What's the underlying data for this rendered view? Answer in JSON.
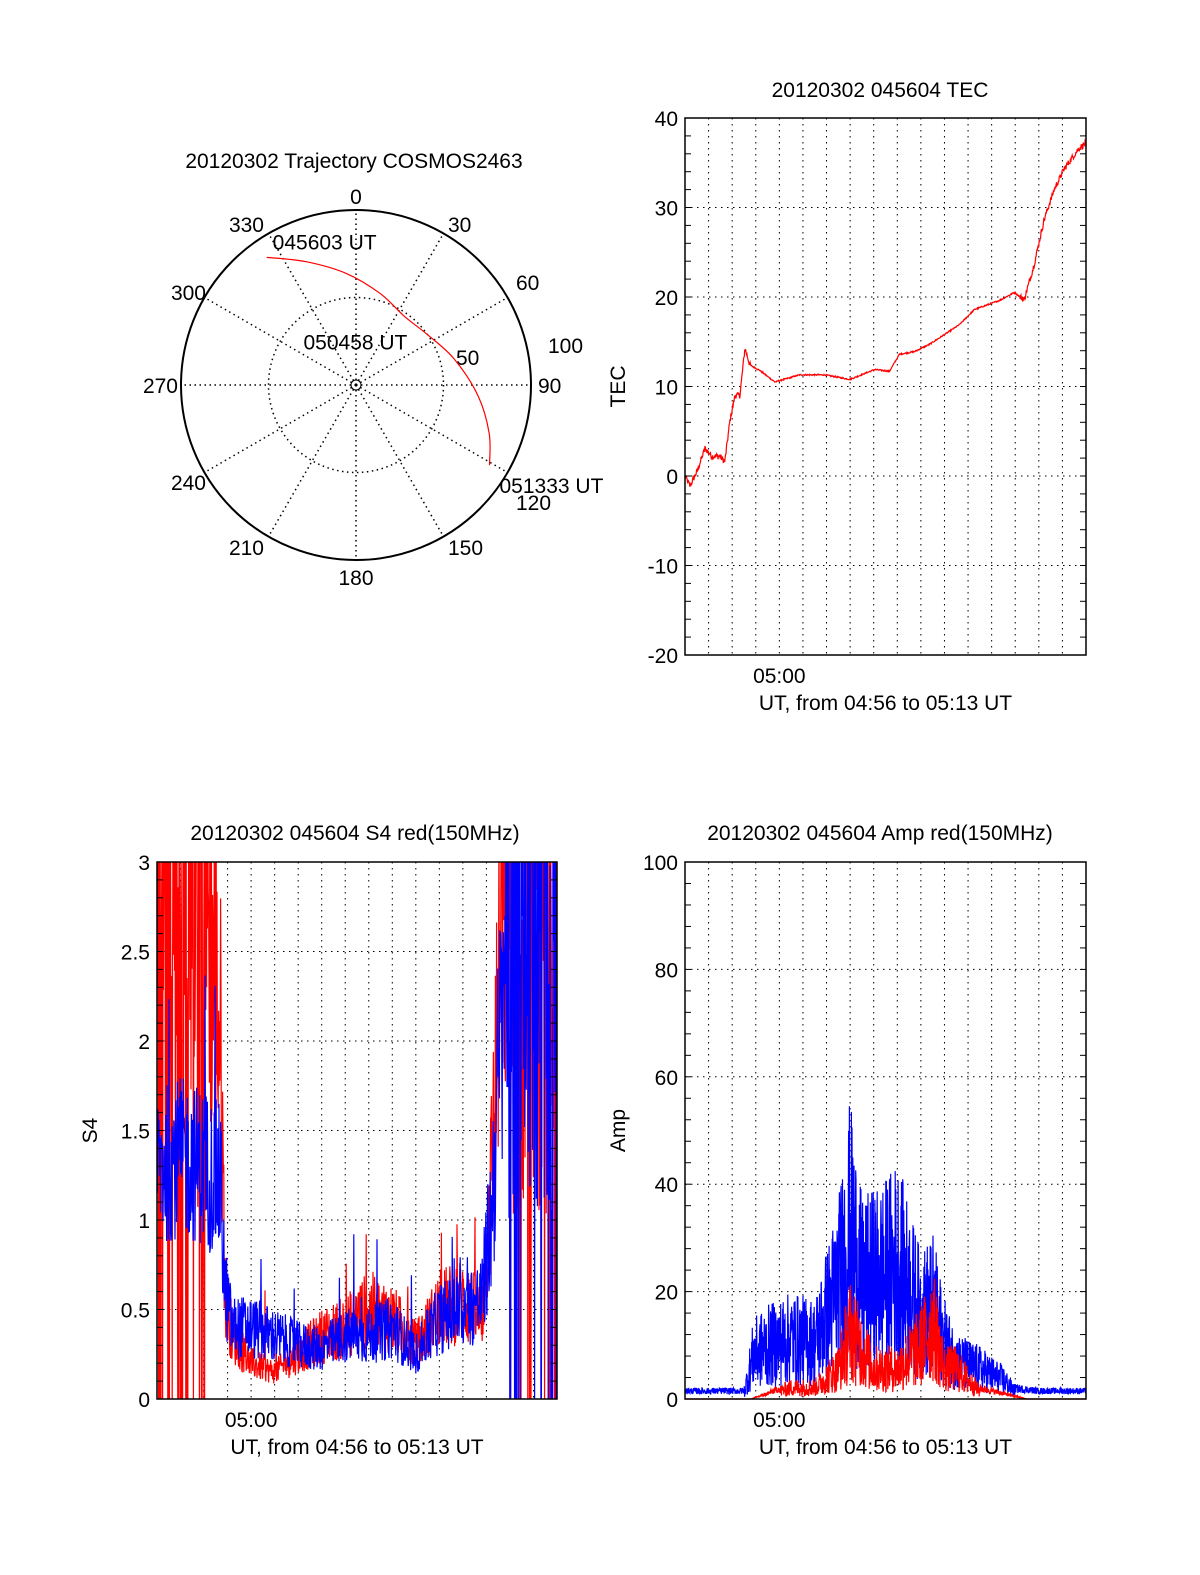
{
  "chart_data": [
    {
      "type": "polar",
      "title": "20120302 Trajectory COSMOS2463",
      "azimuth_labels": [
        "0",
        "30",
        "60",
        "90",
        "120",
        "150",
        "180",
        "210",
        "240",
        "270",
        "300",
        "330"
      ],
      "radial_labels": [
        "50",
        "100"
      ],
      "radial_range": [
        0,
        100
      ],
      "trajectory": {
        "color": "#ff0000",
        "points": [
          {
            "az": 325,
            "r": 89
          },
          {
            "az": 338,
            "r": 76
          },
          {
            "az": 355,
            "r": 64
          },
          {
            "az": 15,
            "r": 54
          },
          {
            "az": 35,
            "r": 48
          },
          {
            "az": 55,
            "r": 50
          },
          {
            "az": 75,
            "r": 58
          },
          {
            "az": 95,
            "r": 70
          },
          {
            "az": 110,
            "r": 81
          },
          {
            "az": 121,
            "r": 89
          }
        ]
      },
      "annotations": [
        {
          "text": "045603 UT",
          "az": 325,
          "r": 89
        },
        {
          "text": "050458 UT",
          "az": 45,
          "r": 48
        },
        {
          "text": "051333 UT",
          "az": 121,
          "r": 89
        }
      ]
    },
    {
      "type": "line",
      "title": "20120302 045604 TEC",
      "xlabel": "UT, from 04:56 to 05:13 UT",
      "ylabel": "TEC",
      "xlim": [
        0,
        17
      ],
      "ylim": [
        -20,
        40
      ],
      "x_tick_labels": [
        {
          "x": 4,
          "label": "05:00"
        }
      ],
      "y_ticks": [
        -20,
        -10,
        0,
        10,
        20,
        30,
        40
      ],
      "grid": true,
      "series": [
        {
          "name": "TEC",
          "color": "#ff0000",
          "x": [
            0,
            0.21,
            0.51,
            0.85,
            1.14,
            1.48,
            1.69,
            1.9,
            2.12,
            2.33,
            2.54,
            2.75,
            3.17,
            3.81,
            4.86,
            5.92,
            6.98,
            7.19,
            8.04,
            8.67,
            9.09,
            9.73,
            10.36,
            11.0,
            11.63,
            12.27,
            12.69,
            13.32,
            13.96,
            14.38,
            14.8,
            15.22,
            15.65,
            16.07,
            16.7,
            17.0
          ],
          "y": [
            0.0,
            -1.1,
            0.5,
            3.1,
            2.2,
            2.2,
            1.6,
            6.1,
            9.0,
            9.0,
            14.3,
            12.4,
            11.8,
            10.5,
            11.3,
            11.3,
            10.8,
            11.0,
            11.9,
            11.7,
            13.6,
            13.9,
            14.7,
            15.8,
            16.9,
            18.6,
            19.0,
            19.6,
            20.5,
            19.7,
            23.6,
            28.6,
            32.0,
            34.3,
            36.6,
            37.2
          ]
        }
      ]
    },
    {
      "type": "line",
      "title": "20120302 045604 S4 red(150MHz)",
      "xlabel": "UT, from 04:56 to 05:13 UT",
      "ylabel": "S4",
      "xlim": [
        0,
        17
      ],
      "ylim": [
        0,
        3
      ],
      "x_tick_labels": [
        {
          "x": 4,
          "label": "05:00"
        }
      ],
      "y_ticks": [
        0,
        0.5,
        1,
        1.5,
        2,
        2.5,
        3
      ],
      "y_tick_labels": [
        "0",
        "0.5",
        "1",
        "1.5",
        "2",
        "2.5",
        "3"
      ],
      "grid": true,
      "series": [
        {
          "name": "red",
          "color": "#ff0000",
          "x": [
            0,
            1,
            2,
            2.7,
            2.9,
            3.2,
            4.0,
            5.0,
            6.0,
            7.0,
            8.0,
            9.0,
            10.0,
            11.0,
            12.0,
            13.0,
            13.8,
            14.2,
            14.6,
            15.0,
            16.0,
            17.0
          ],
          "y": [
            3.0,
            3.0,
            3.0,
            2.0,
            0.6,
            0.35,
            0.2,
            0.15,
            0.25,
            0.35,
            0.4,
            0.5,
            0.45,
            0.3,
            0.5,
            0.55,
            0.45,
            1.2,
            2.5,
            3.0,
            3.0,
            3.0
          ]
        },
        {
          "name": "blue",
          "color": "#0000ff",
          "x": [
            0,
            1,
            2,
            2.7,
            2.9,
            3.2,
            4.0,
            5.0,
            6.0,
            7.0,
            8.0,
            9.0,
            10.0,
            11.0,
            12.0,
            13.0,
            13.8,
            14.2,
            14.6,
            15.0,
            16.0,
            17.0
          ],
          "y": [
            1.3,
            1.35,
            1.3,
            1.2,
            0.6,
            0.4,
            0.4,
            0.35,
            0.3,
            0.28,
            0.35,
            0.35,
            0.4,
            0.25,
            0.45,
            0.5,
            0.55,
            1.0,
            2.0,
            3.0,
            3.0,
            3.0
          ]
        }
      ]
    },
    {
      "type": "line",
      "title": "20120302 045604 Amp red(150MHz)",
      "xlabel": "UT, from 04:56 to 05:13 UT",
      "ylabel": "Amp",
      "xlim": [
        0,
        17
      ],
      "ylim": [
        0,
        100
      ],
      "x_tick_labels": [
        {
          "x": 4,
          "label": "05:00"
        }
      ],
      "y_ticks": [
        0,
        20,
        40,
        60,
        80,
        100
      ],
      "grid": true,
      "series": [
        {
          "name": "red",
          "color": "#ff0000",
          "x": [
            0,
            2.8,
            3.5,
            4.5,
            5.5,
            6.5,
            7.0,
            8.0,
            9.0,
            10.0,
            10.5,
            11.0,
            11.5,
            12.5,
            13.5,
            14.5,
            17.0
          ],
          "y": [
            0,
            0,
            1,
            3,
            3,
            8,
            18,
            8,
            8,
            14,
            20,
            8,
            8,
            2,
            1,
            0,
            0
          ]
        },
        {
          "name": "blue",
          "color": "#0000ff",
          "x": [
            0,
            2.5,
            2.9,
            3.5,
            4.5,
            5.5,
            6.5,
            7.0,
            7.5,
            8.5,
            9.0,
            10.0,
            10.5,
            11.0,
            11.5,
            12.5,
            13.5,
            14.0,
            15.0,
            17.0
          ],
          "y": [
            1.5,
            1.5,
            12,
            14,
            16,
            15,
            30,
            45,
            30,
            33,
            36,
            22,
            25,
            15,
            10,
            8,
            5,
            2,
            1.5,
            1.5
          ]
        }
      ]
    }
  ]
}
